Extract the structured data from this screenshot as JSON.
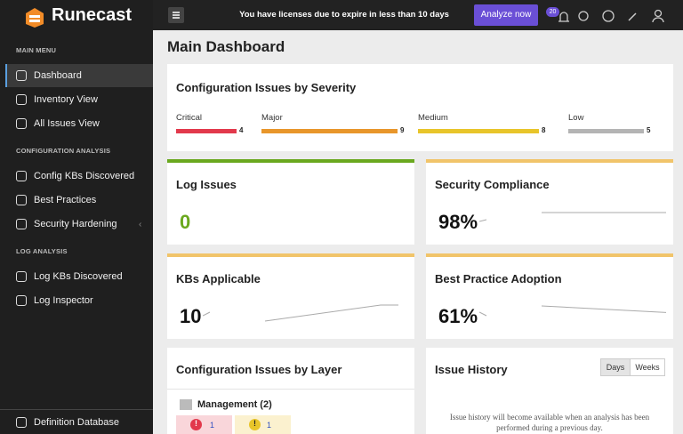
{
  "sidebar": {
    "brand": "Runecast",
    "sections": [
      {
        "title": "MAIN MENU",
        "items": [
          "Dashboard",
          "Inventory View",
          "All Issues View"
        ]
      },
      {
        "title": "CONFIGURATION ANALYSIS",
        "items": [
          "Config KBs Discovered",
          "Best Practices",
          "Security Hardening"
        ]
      },
      {
        "title": "LOG ANALYSIS",
        "items": [
          "Log KBs Discovered",
          "Log Inspector"
        ]
      }
    ],
    "footer": "Definition Database"
  },
  "topbar": {
    "notice": "You have licenses due to expire in less than 10 days",
    "button": "Analyze now",
    "badge": 20
  },
  "page": {
    "title": "Main Dashboard"
  },
  "severity": {
    "title": "Configuration Issues by Severity",
    "items": [
      {
        "label": "Critical",
        "count": 4,
        "color": "#e2394c"
      },
      {
        "label": "Major",
        "count": 9,
        "color": "#e8962b"
      },
      {
        "label": "Medium",
        "count": 8,
        "color": "#e8c52a"
      },
      {
        "label": "Low",
        "count": 5,
        "color": "#b4b4b4"
      }
    ]
  },
  "cards": [
    {
      "title": "Log Issues",
      "value": "0"
    },
    {
      "title": "Security Compliance",
      "value": "98%"
    },
    {
      "title": "KBs Applicable",
      "value": "10"
    },
    {
      "title": "Best Practice Adoption",
      "value": "61%"
    }
  ],
  "layer": {
    "title": "Configuration Issues by Layer",
    "group": "Management (2)",
    "counts": [
      1,
      1
    ]
  },
  "history": {
    "title": "Issue History",
    "tabs": [
      "Days",
      "Weeks"
    ],
    "message": "Issue history will become available when an analysis has been performed during a previous day."
  }
}
